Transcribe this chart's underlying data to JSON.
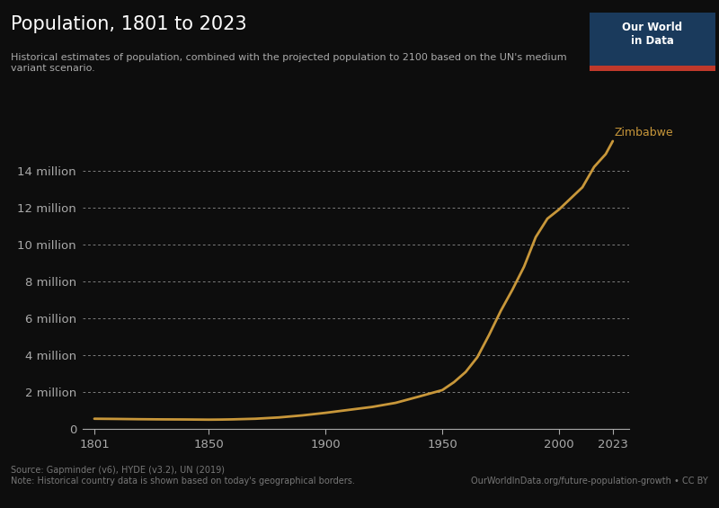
{
  "title": "Population, 1801 to 2023",
  "subtitle": "Historical estimates of population, combined with the projected population to 2100 based on the UN's medium\nvariant scenario.",
  "line_color": "#c8973a",
  "label": "Zimbabwe",
  "background_color": "#0d0d0d",
  "text_color": "#aaaaaa",
  "grid_color": "#aaaaaa",
  "source_text": "Source: Gapminder (v6), HYDE (v3.2), UN (2019)\nNote: Historical country data is shown based on today's geographical borders.",
  "owid_text": "OurWorldInData.org/future-population-growth • CC BY",
  "owid_box_color": "#1a3a5c",
  "owid_box_accent": "#c0392b",
  "years": [
    1801,
    1810,
    1820,
    1830,
    1840,
    1850,
    1855,
    1860,
    1870,
    1880,
    1890,
    1900,
    1910,
    1920,
    1930,
    1940,
    1950,
    1955,
    1960,
    1965,
    1970,
    1975,
    1980,
    1985,
    1990,
    1995,
    2000,
    2005,
    2010,
    2015,
    2020,
    2023
  ],
  "population": [
    570000,
    560000,
    545000,
    535000,
    530000,
    520000,
    525000,
    535000,
    570000,
    640000,
    750000,
    890000,
    1050000,
    1210000,
    1430000,
    1770000,
    2120000,
    2550000,
    3100000,
    3900000,
    5100000,
    6400000,
    7550000,
    8800000,
    10400000,
    11400000,
    11900000,
    12500000,
    13100000,
    14200000,
    14900000,
    15600000
  ],
  "yticks": [
    0,
    2000000,
    4000000,
    6000000,
    8000000,
    10000000,
    12000000,
    14000000
  ],
  "ytick_labels": [
    "0",
    "2 million",
    "4 million",
    "6 million",
    "8 million",
    "10 million",
    "12 million",
    "14 million"
  ],
  "xticks": [
    1801,
    1850,
    1900,
    1950,
    2000,
    2023
  ],
  "xlim": [
    1796,
    2030
  ],
  "ylim": [
    0,
    16500000
  ]
}
